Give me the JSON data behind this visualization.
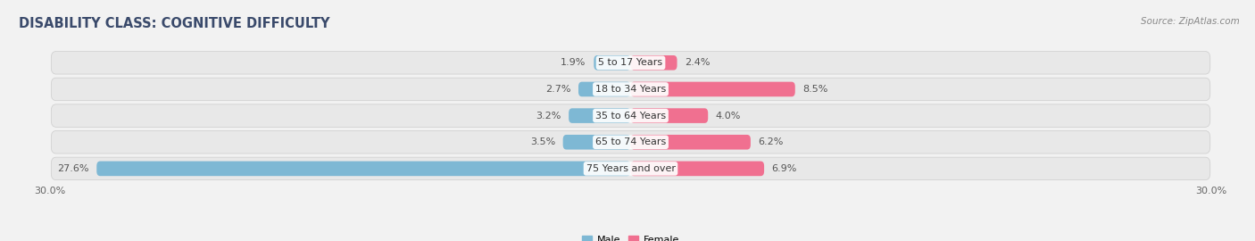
{
  "title": "DISABILITY CLASS: COGNITIVE DIFFICULTY",
  "source": "Source: ZipAtlas.com",
  "categories": [
    "5 to 17 Years",
    "18 to 34 Years",
    "35 to 64 Years",
    "65 to 74 Years",
    "75 Years and over"
  ],
  "male_values": [
    1.9,
    2.7,
    3.2,
    3.5,
    27.6
  ],
  "female_values": [
    2.4,
    8.5,
    4.0,
    6.2,
    6.9
  ],
  "male_color": "#7eb8d4",
  "female_color": "#f07090",
  "max_val": 30.0,
  "bg_color": "#f2f2f2",
  "row_bg_even": "#ebebeb",
  "row_bg_odd": "#f5f5f5",
  "title_color": "#3a4a6b",
  "title_fontsize": 10.5,
  "label_fontsize": 8.0,
  "tick_fontsize": 8.0,
  "source_fontsize": 7.5,
  "value_color": "#555555"
}
